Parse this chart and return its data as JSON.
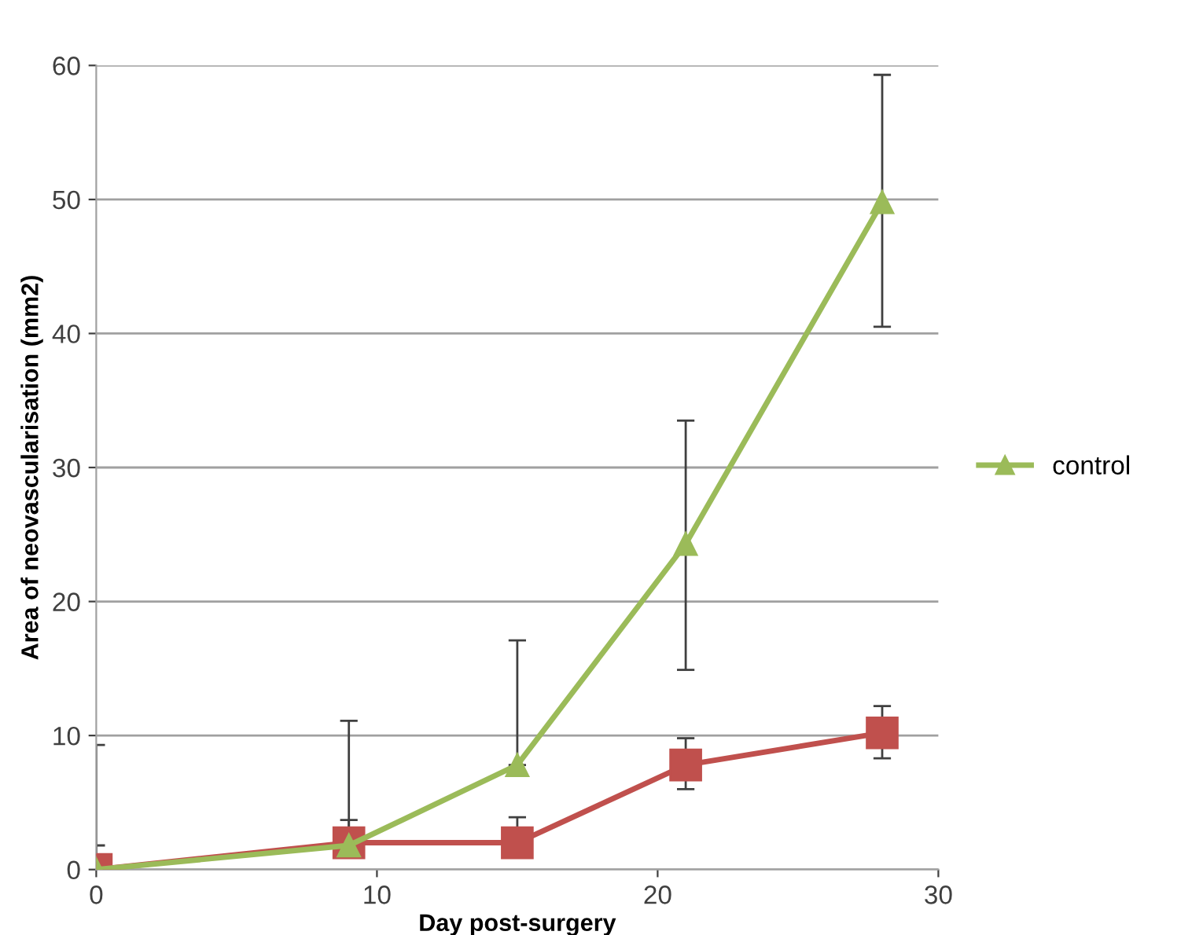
{
  "chart_data": {
    "type": "line",
    "xlabel": "Day post-surgery",
    "ylabel": "Area of neovascularisation (mm2)",
    "x": [
      0,
      9,
      15,
      21,
      28
    ],
    "series": [
      {
        "color": "#c0504d",
        "marker": "square",
        "values": [
          0,
          2,
          2,
          7.8,
          10.2
        ],
        "errors": [
          [
            0,
            1.8
          ],
          [
            2,
            3.7
          ],
          [
            2,
            3.9
          ],
          [
            6.0,
            9.8
          ],
          [
            8.3,
            12.2
          ]
        ]
      },
      {
        "name": "control",
        "color": "#9bbb59",
        "marker": "triangle",
        "values": [
          0,
          1.8,
          7.8,
          24.3,
          49.8
        ],
        "errors": [
          [
            0,
            9.3
          ],
          [
            1.8,
            11.1
          ],
          [
            7.8,
            17.1
          ],
          [
            14.9,
            33.5
          ],
          [
            40.5,
            59.3
          ]
        ]
      }
    ],
    "xlim": [
      0,
      30
    ],
    "xticks": [
      0,
      10,
      20,
      30
    ],
    "ylim": [
      0,
      60
    ],
    "yticks": [
      0,
      10,
      20,
      30,
      40,
      50,
      60
    ],
    "grid": "y",
    "legend": "right",
    "line_style": "solid"
  }
}
